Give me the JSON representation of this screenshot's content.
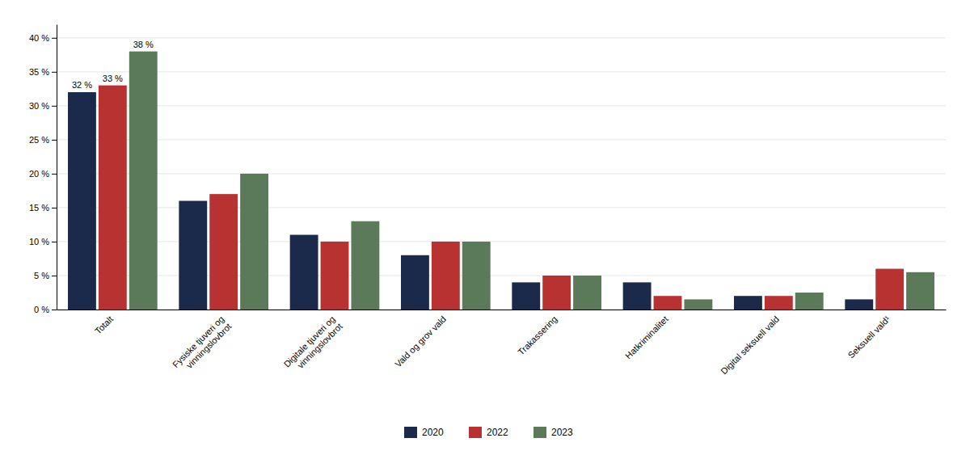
{
  "chart_data": {
    "type": "bar",
    "categories": [
      "Totalt",
      "Fysiske tjuveri og\nvinningslovbrot",
      "Digitale tjuveri og\nvinningslovbrot",
      "Vald og grov vald",
      "Trakassering",
      "Hatkriminalitet",
      "Digital seksuell vald",
      "Seksuell vald¹"
    ],
    "series": [
      {
        "name": "2020",
        "color": "#1b2a4a",
        "values": [
          32,
          16,
          11,
          8,
          4,
          4,
          2,
          1.5
        ],
        "value_labels": [
          "32 %",
          null,
          null,
          null,
          null,
          null,
          null,
          null
        ]
      },
      {
        "name": "2022",
        "color": "#b83232",
        "values": [
          33,
          17,
          10,
          10,
          5,
          2,
          2,
          6
        ],
        "value_labels": [
          "33 %",
          null,
          null,
          null,
          null,
          null,
          null,
          null
        ]
      },
      {
        "name": "2023",
        "color": "#5a7a5a",
        "values": [
          38,
          20,
          13,
          10,
          5,
          1.5,
          2.5,
          5.5
        ],
        "value_labels": [
          "38 %",
          null,
          null,
          null,
          null,
          null,
          null,
          null
        ]
      }
    ],
    "ylim": [
      0,
      42
    ],
    "yticks": [
      {
        "value": 0,
        "label": "0 %"
      },
      {
        "value": 5,
        "label": "5 %"
      },
      {
        "value": 10,
        "label": "10 %"
      },
      {
        "value": 15,
        "label": "15 %"
      },
      {
        "value": 20,
        "label": "20 %"
      },
      {
        "value": 25,
        "label": "25 %"
      },
      {
        "value": 30,
        "label": "30 %"
      },
      {
        "value": 35,
        "label": "35 %"
      },
      {
        "value": 40,
        "label": "40 %"
      }
    ],
    "grid": true,
    "legend": "bottom"
  }
}
